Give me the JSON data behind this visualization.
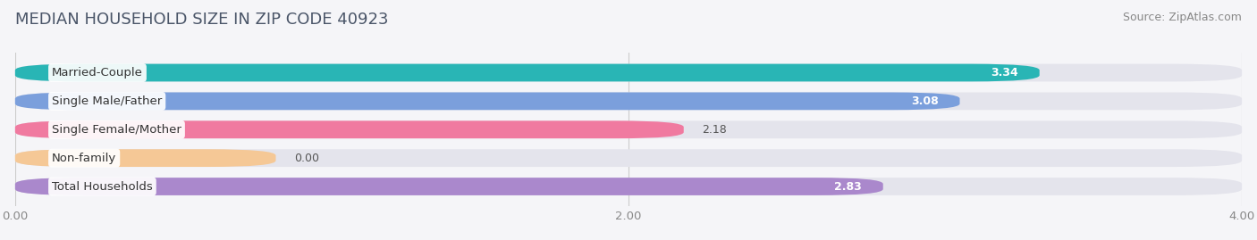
{
  "title": "MEDIAN HOUSEHOLD SIZE IN ZIP CODE 40923",
  "source": "Source: ZipAtlas.com",
  "categories": [
    "Married-Couple",
    "Single Male/Father",
    "Single Female/Mother",
    "Non-family",
    "Total Households"
  ],
  "values": [
    3.34,
    3.08,
    2.18,
    0.0,
    2.83
  ],
  "bar_colors": [
    "#29b5b5",
    "#7b9fdc",
    "#f07aa0",
    "#f5c896",
    "#aa88cc"
  ],
  "value_inside": [
    true,
    true,
    false,
    false,
    true
  ],
  "value_colors_inside": [
    "white",
    "white",
    "#555555",
    "#555555",
    "white"
  ],
  "xlim": [
    0,
    4.0
  ],
  "xtick_labels": [
    "0.00",
    "2.00",
    "4.00"
  ],
  "xtick_vals": [
    0.0,
    2.0,
    4.0
  ],
  "bar_height": 0.62,
  "background_color": "#f5f5f8",
  "bar_bg_color": "#e4e4ec",
  "title_fontsize": 13,
  "source_fontsize": 9,
  "label_fontsize": 9.5,
  "value_fontsize": 9,
  "non_family_bar_width": 0.85
}
